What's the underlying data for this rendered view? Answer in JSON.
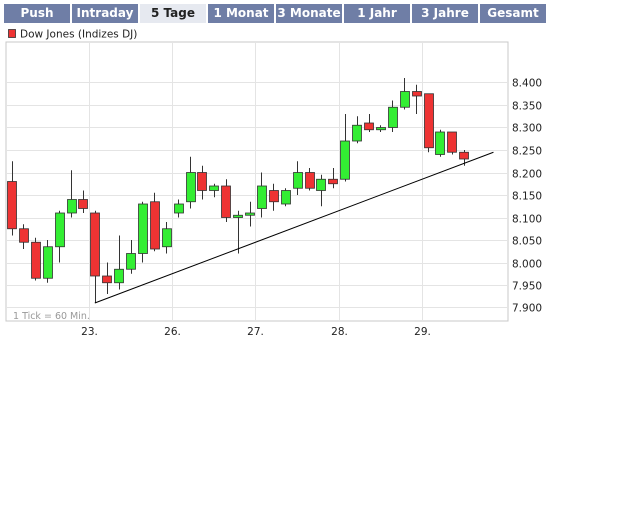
{
  "tabs": [
    {
      "label": "Push",
      "active": false
    },
    {
      "label": "Intraday",
      "active": false
    },
    {
      "label": "5 Tage",
      "active": true
    },
    {
      "label": "1 Monat",
      "active": false
    },
    {
      "label": "3 Monate",
      "active": false
    },
    {
      "label": "1 Jahr",
      "active": false
    },
    {
      "label": "3 Jahre",
      "active": false
    },
    {
      "label": "Gesamt",
      "active": false
    }
  ],
  "colors": {
    "up": "#33ee33",
    "down": "#ee3333",
    "tab_bg": "#6f7ea6",
    "tab_active_bg": "#e6e9f0"
  },
  "chart_data": {
    "type": "candlestick",
    "legend": "Dow Jones (Indizes DJ)",
    "note": "1 Tick = 60 Min.",
    "grid": true,
    "ylim": [
      7.87,
      8.49
    ],
    "y_ticks": [
      {
        "value": 7.9,
        "label": "7.900"
      },
      {
        "value": 7.95,
        "label": "7.950"
      },
      {
        "value": 8.0,
        "label": "8.000"
      },
      {
        "value": 8.05,
        "label": "8.050"
      },
      {
        "value": 8.1,
        "label": "8.100"
      },
      {
        "value": 8.15,
        "label": "8.150"
      },
      {
        "value": 8.2,
        "label": "8.200"
      },
      {
        "value": 8.25,
        "label": "8.250"
      },
      {
        "value": 8.3,
        "label": "8.300"
      },
      {
        "value": 8.35,
        "label": "8.350"
      },
      {
        "value": 8.4,
        "label": "8.400"
      }
    ],
    "x_ticks": [
      {
        "index": 7,
        "label": "23."
      },
      {
        "index": 14,
        "label": "26."
      },
      {
        "index": 21,
        "label": "27."
      },
      {
        "index": 28,
        "label": "28."
      },
      {
        "index": 35,
        "label": "29."
      }
    ],
    "n_slots": 42,
    "candles": [
      {
        "i": 0,
        "o": 8.18,
        "h": 8.225,
        "l": 8.06,
        "c": 8.075
      },
      {
        "i": 1,
        "o": 8.075,
        "h": 8.085,
        "l": 8.03,
        "c": 8.045
      },
      {
        "i": 2,
        "o": 8.045,
        "h": 8.055,
        "l": 7.96,
        "c": 7.965
      },
      {
        "i": 3,
        "o": 7.965,
        "h": 8.05,
        "l": 7.955,
        "c": 8.035
      },
      {
        "i": 4,
        "o": 8.035,
        "h": 8.115,
        "l": 8.0,
        "c": 8.11
      },
      {
        "i": 5,
        "o": 8.11,
        "h": 8.205,
        "l": 8.1,
        "c": 8.14
      },
      {
        "i": 6,
        "o": 8.14,
        "h": 8.16,
        "l": 8.11,
        "c": 8.12
      },
      {
        "i": 7,
        "o": 8.11,
        "h": 8.115,
        "l": 7.91,
        "c": 7.97
      },
      {
        "i": 8,
        "o": 7.97,
        "h": 8.0,
        "l": 7.93,
        "c": 7.955
      },
      {
        "i": 9,
        "o": 7.955,
        "h": 8.06,
        "l": 7.94,
        "c": 7.985
      },
      {
        "i": 10,
        "o": 7.985,
        "h": 8.05,
        "l": 7.975,
        "c": 8.02
      },
      {
        "i": 11,
        "o": 8.02,
        "h": 8.135,
        "l": 8.0,
        "c": 8.13
      },
      {
        "i": 12,
        "o": 8.135,
        "h": 8.155,
        "l": 8.025,
        "c": 8.03
      },
      {
        "i": 13,
        "o": 8.035,
        "h": 8.09,
        "l": 8.02,
        "c": 8.075
      },
      {
        "i": 14,
        "o": 8.11,
        "h": 8.14,
        "l": 8.1,
        "c": 8.13
      },
      {
        "i": 15,
        "o": 8.135,
        "h": 8.235,
        "l": 8.12,
        "c": 8.2
      },
      {
        "i": 16,
        "o": 8.2,
        "h": 8.215,
        "l": 8.14,
        "c": 8.16
      },
      {
        "i": 17,
        "o": 8.16,
        "h": 8.175,
        "l": 8.145,
        "c": 8.17
      },
      {
        "i": 18,
        "o": 8.17,
        "h": 8.185,
        "l": 8.09,
        "c": 8.1
      },
      {
        "i": 19,
        "o": 8.1,
        "h": 8.115,
        "l": 8.02,
        "c": 8.105
      },
      {
        "i": 20,
        "o": 8.105,
        "h": 8.135,
        "l": 8.08,
        "c": 8.11
      },
      {
        "i": 21,
        "o": 8.12,
        "h": 8.2,
        "l": 8.1,
        "c": 8.17
      },
      {
        "i": 22,
        "o": 8.16,
        "h": 8.175,
        "l": 8.115,
        "c": 8.135
      },
      {
        "i": 23,
        "o": 8.13,
        "h": 8.165,
        "l": 8.125,
        "c": 8.16
      },
      {
        "i": 24,
        "o": 8.165,
        "h": 8.225,
        "l": 8.15,
        "c": 8.2
      },
      {
        "i": 25,
        "o": 8.2,
        "h": 8.21,
        "l": 8.16,
        "c": 8.165
      },
      {
        "i": 26,
        "o": 8.16,
        "h": 8.195,
        "l": 8.125,
        "c": 8.185
      },
      {
        "i": 27,
        "o": 8.185,
        "h": 8.21,
        "l": 8.165,
        "c": 8.175
      },
      {
        "i": 28,
        "o": 8.185,
        "h": 8.33,
        "l": 8.18,
        "c": 8.27
      },
      {
        "i": 29,
        "o": 8.27,
        "h": 8.325,
        "l": 8.265,
        "c": 8.305
      },
      {
        "i": 30,
        "o": 8.31,
        "h": 8.33,
        "l": 8.29,
        "c": 8.295
      },
      {
        "i": 31,
        "o": 8.295,
        "h": 8.305,
        "l": 8.29,
        "c": 8.3
      },
      {
        "i": 32,
        "o": 8.3,
        "h": 8.36,
        "l": 8.29,
        "c": 8.345
      },
      {
        "i": 33,
        "o": 8.345,
        "h": 8.41,
        "l": 8.34,
        "c": 8.38
      },
      {
        "i": 34,
        "o": 8.38,
        "h": 8.395,
        "l": 8.33,
        "c": 8.37
      },
      {
        "i": 35,
        "o": 8.375,
        "h": 8.375,
        "l": 8.245,
        "c": 8.255
      },
      {
        "i": 36,
        "o": 8.24,
        "h": 8.295,
        "l": 8.235,
        "c": 8.29
      },
      {
        "i": 37,
        "o": 8.29,
        "h": 8.29,
        "l": 8.24,
        "c": 8.245
      },
      {
        "i": 38,
        "o": 8.245,
        "h": 8.25,
        "l": 8.215,
        "c": 8.23
      }
    ],
    "trendline": [
      {
        "x": 7.0,
        "y": 7.91
      },
      {
        "x": 40.5,
        "y": 8.245
      }
    ]
  }
}
